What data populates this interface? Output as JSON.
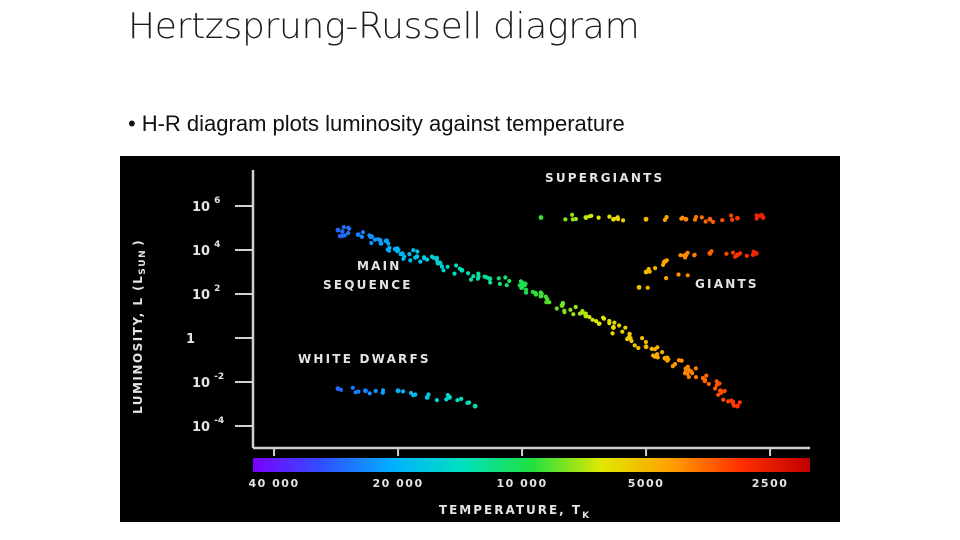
{
  "slide": {
    "title": "Hertzsprung-Russell diagram",
    "bullet": "H-R diagram plots luminosity against temperature"
  },
  "chart_data": {
    "type": "scatter",
    "title": "",
    "xlabel": "TEMPERATURE, T",
    "xlabel_sub": "K",
    "ylabel": "LUMINOSITY, L (L",
    "ylabel_sub": "SUN",
    "ylabel_tail": ")",
    "x_axis": {
      "scale": "log",
      "reversed": true,
      "xlim": [
        45000,
        2000
      ]
    },
    "y_axis": {
      "scale": "log",
      "ylim": [
        1e-05,
        10000000
      ]
    },
    "grid": false,
    "x_ticks": [
      {
        "value": 40000,
        "label": "40 000"
      },
      {
        "value": 20000,
        "label": "20 000"
      },
      {
        "value": 10000,
        "label": "10 000"
      },
      {
        "value": 5000,
        "label": "5000"
      },
      {
        "value": 2500,
        "label": "2500"
      }
    ],
    "y_ticks": [
      {
        "value": 1000000,
        "base": "10",
        "exp": "6"
      },
      {
        "value": 10000,
        "base": "10",
        "exp": "4"
      },
      {
        "value": 100,
        "base": "10",
        "exp": "2"
      },
      {
        "value": 1,
        "base": "1",
        "exp": ""
      },
      {
        "value": 0.01,
        "base": "10",
        "exp": "-2"
      },
      {
        "value": 0.0001,
        "base": "10",
        "exp": "-4"
      }
    ],
    "annotations": {
      "supergiants": "SUPERGIANTS",
      "giants": "GIANTS",
      "main_sequence_1": "MAIN",
      "main_sequence_2": "SEQUENCE",
      "white_dwarfs": "WHITE DWARFS"
    },
    "colorbar": {
      "from_temperature": 45000,
      "to_temperature": 2000,
      "colors": [
        "#7a00ff",
        "#3050ff",
        "#00b0ff",
        "#00e0c0",
        "#20e040",
        "#e0e800",
        "#ffa000",
        "#ff3000",
        "#c00000"
      ]
    },
    "groups": [
      {
        "key": "main_sequence",
        "points": [
          [
            28000,
            80000
          ],
          [
            25000,
            50000
          ],
          [
            22000,
            20000
          ],
          [
            20000,
            10000
          ],
          [
            18000,
            5000
          ],
          [
            16000,
            2500
          ],
          [
            14000,
            1200
          ],
          [
            12000,
            500
          ],
          [
            10000,
            200
          ],
          [
            9000,
            80
          ],
          [
            8000,
            30
          ],
          [
            7000,
            10
          ],
          [
            6000,
            3
          ],
          [
            5500,
            1
          ],
          [
            5000,
            0.4
          ],
          [
            4500,
            0.12
          ],
          [
            4000,
            0.04
          ],
          [
            3600,
            0.012
          ],
          [
            3300,
            0.004
          ],
          [
            3000,
            0.0008
          ]
        ]
      },
      {
        "key": "supergiants",
        "points": [
          [
            9000,
            300000
          ],
          [
            7000,
            300000
          ],
          [
            6000,
            250000
          ],
          [
            5000,
            250000
          ],
          [
            4000,
            250000
          ],
          [
            3500,
            250000
          ],
          [
            3000,
            280000
          ],
          [
            2600,
            300000
          ]
        ]
      },
      {
        "key": "giants",
        "points": [
          [
            5000,
            1000
          ],
          [
            4500,
            3000
          ],
          [
            4000,
            6000
          ],
          [
            3500,
            7000
          ],
          [
            3000,
            6000
          ],
          [
            2700,
            7000
          ],
          [
            5200,
            200
          ]
        ]
      },
      {
        "key": "white_dwarfs",
        "points": [
          [
            28000,
            0.005
          ],
          [
            24000,
            0.004
          ],
          [
            20000,
            0.004
          ],
          [
            17000,
            0.002
          ],
          [
            15000,
            0.002
          ],
          [
            13000,
            0.0008
          ]
        ]
      }
    ]
  }
}
